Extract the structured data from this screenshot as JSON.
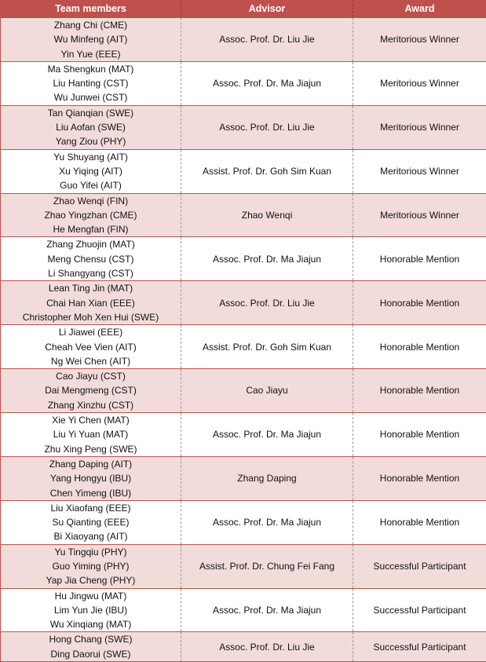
{
  "headers": {
    "members": "Team members",
    "advisor": "Advisor",
    "award": "Award"
  },
  "rows": [
    {
      "members": [
        "Zhang Chi (CME)",
        "Wu Minfeng (AIT)",
        "Yin Yue (EEE)"
      ],
      "advisor": "Assoc. Prof. Dr. Liu Jie",
      "award": "Meritorious Winner"
    },
    {
      "members": [
        "Ma Shengkun (MAT)",
        "Liu Hanting (CST)",
        "Wu Junwei (CST)"
      ],
      "advisor": "Assoc. Prof. Dr. Ma Jiajun",
      "award": "Meritorious Winner"
    },
    {
      "members": [
        "Tan Qianqian (SWE)",
        "Liu Aofan (SWE)",
        "Yang Ziou (PHY)"
      ],
      "advisor": "Assoc. Prof. Dr. Liu Jie",
      "award": "Meritorious Winner"
    },
    {
      "members": [
        "Yu Shuyang (AIT)",
        "Xu Yiqing (AIT)",
        "Guo Yifei (AIT)"
      ],
      "advisor": "Assist. Prof. Dr. Goh Sim Kuan",
      "award": "Meritorious Winner"
    },
    {
      "members": [
        "Zhao Wenqi (FIN)",
        "Zhao Yingzhan (CME)",
        "He Mengfan (FIN)"
      ],
      "advisor": "Zhao Wenqi",
      "award": "Meritorious Winner"
    },
    {
      "members": [
        "Zhang Zhuojin (MAT)",
        "Meng Chensu (CST)",
        "Li Shangyang (CST)"
      ],
      "advisor": "Assoc. Prof. Dr. Ma Jiajun",
      "award": "Honorable Mention"
    },
    {
      "members": [
        "Lean Ting Jin (MAT)",
        "Chai Han Xian (EEE)",
        "Christopher Moh Xen Hui (SWE)"
      ],
      "advisor": "Assoc. Prof. Dr. Liu Jie",
      "award": "Honorable Mention"
    },
    {
      "members": [
        "Li Jiawei (EEE)",
        "Cheah Vee Vien (AIT)",
        "Ng Wei Chen (AIT)"
      ],
      "advisor": "Assist. Prof. Dr. Goh Sim Kuan",
      "award": "Honorable Mention"
    },
    {
      "members": [
        "Cao Jiayu (CST)",
        "Dai Mengmeng (CST)",
        "Zhang Xinzhu (CST)"
      ],
      "advisor": "Cao Jiayu",
      "award": "Honorable Mention"
    },
    {
      "members": [
        "Xie Yi Chen (MAT)",
        "Liu Yi Yuan (MAT)",
        "Zhu Xing Peng (SWE)"
      ],
      "advisor": "Assoc. Prof. Dr. Ma Jiajun",
      "award": "Honorable Mention"
    },
    {
      "members": [
        "Zhang Daping (AIT)",
        "Yang Hongyu (IBU)",
        "Chen Yimeng (IBU)"
      ],
      "advisor": "Zhang Daping",
      "award": "Honorable Mention"
    },
    {
      "members": [
        "Liu Xiaofang (EEE)",
        "Su Qianting (EEE)",
        "Bi Xiaoyang (AIT)"
      ],
      "advisor": "Assoc. Prof. Dr. Ma Jiajun",
      "award": "Honorable Mention"
    },
    {
      "members": [
        "Yu Tingqiu (PHY)",
        "Guo Yiming (PHY)",
        "Yap Jia Cheng (PHY)"
      ],
      "advisor": "Assist. Prof. Dr. Chung Fei Fang",
      "award": "Successful Participant"
    },
    {
      "members": [
        "Hu Jingwu (MAT)",
        "Lim Yun Jie (IBU)",
        "Wu Xinqiang (MAT)"
      ],
      "advisor": "Assoc. Prof. Dr. Ma Jiajun",
      "award": "Successful Participant"
    },
    {
      "members": [
        "Hong Chang (SWE)",
        "Ding Daorui (SWE)"
      ],
      "advisor": "Assoc. Prof. Dr. Liu Jie",
      "award": "Successful Participant"
    }
  ]
}
